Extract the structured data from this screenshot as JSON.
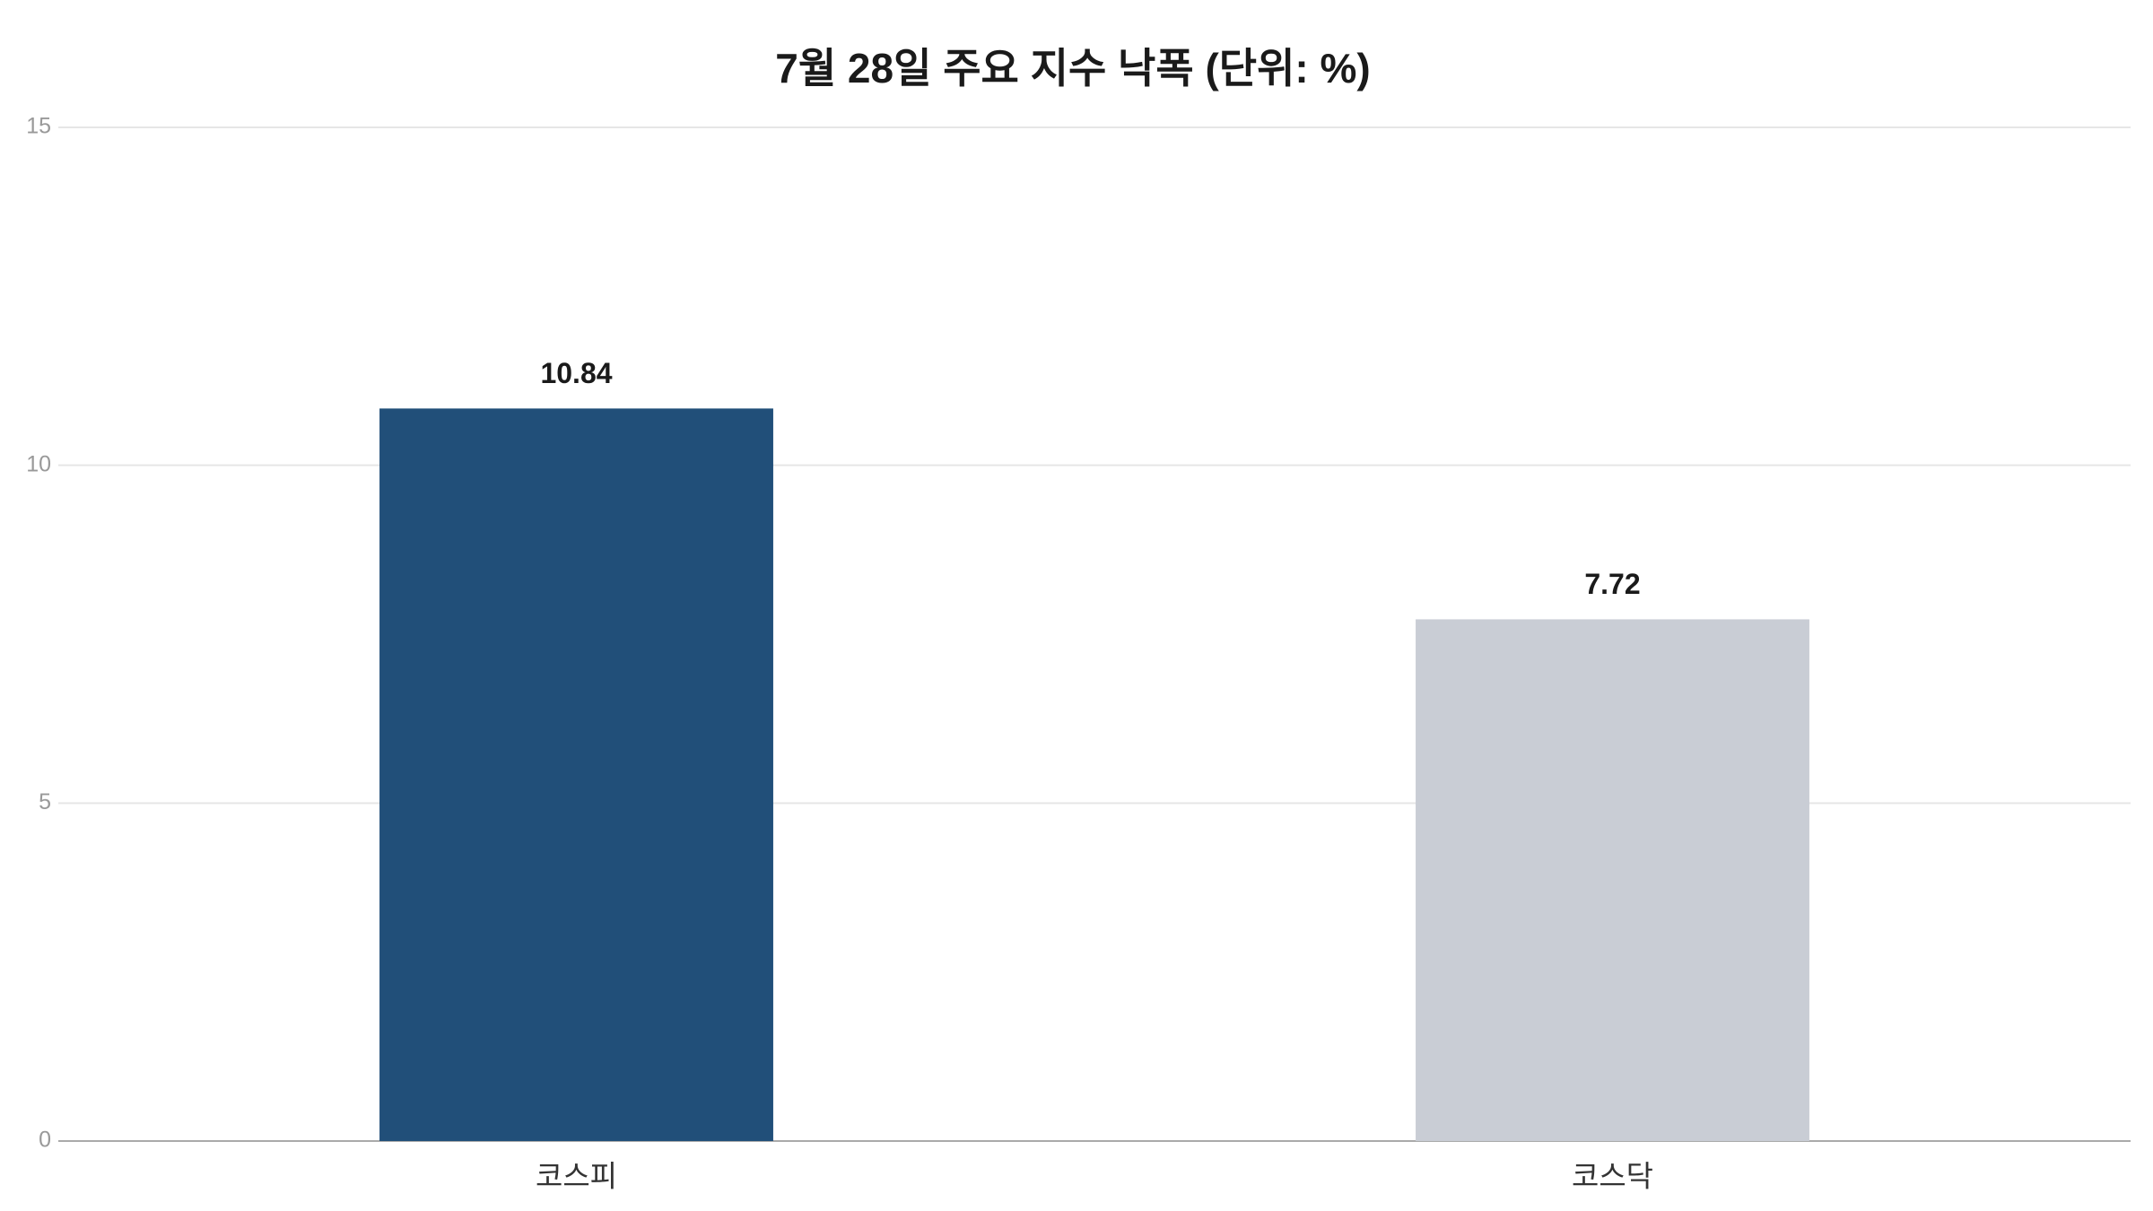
{
  "chart_data": {
    "type": "bar",
    "title": "7월 28일 주요 지수 낙폭 (단위: %)",
    "categories": [
      "코스피",
      "코스닥"
    ],
    "values": [
      10.84,
      7.72
    ],
    "colors": [
      "#214f79",
      "#c9cdd5"
    ],
    "ylim": [
      0,
      15
    ],
    "yticks": [
      0,
      5,
      10,
      15
    ],
    "grid": true
  }
}
